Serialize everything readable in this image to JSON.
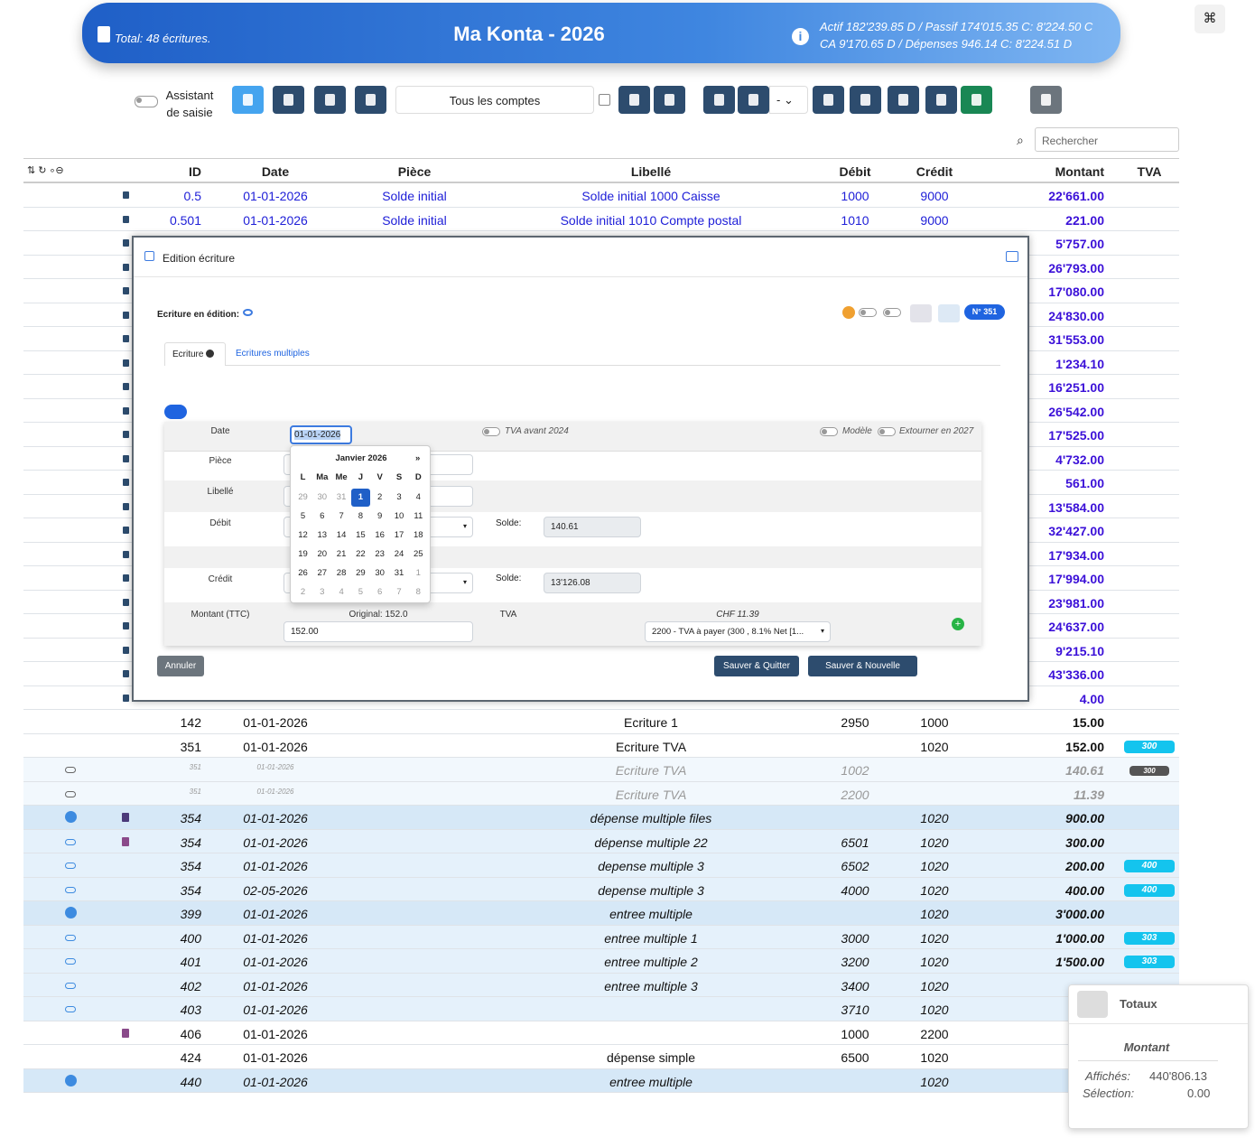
{
  "header": {
    "total": "Total: 48 écritures.",
    "title": "Ma Konta - 2026",
    "summary_line1": "Actif 182'239.85 D / Passif 174'015.35 C: 8'224.50 C",
    "summary_line2": "CA 9'170.65 D / Dépenses 946.14 C: 8'224.51 D"
  },
  "toolbar": {
    "assistant_label": "Assistant de saisie",
    "account_select": "Tous les comptes",
    "bookmark_select": "-",
    "search_placeholder": "Rechercher"
  },
  "table": {
    "columns": [
      "ID",
      "Date",
      "Pièce",
      "Libellé",
      "Débit",
      "Crédit",
      "Montant",
      "TVA"
    ],
    "rows": [
      {
        "kind": "initial",
        "id": "0.5",
        "date": "01-01-2026",
        "piece": "Solde initial",
        "libelle": "Solde initial 1000 Caisse",
        "debit": "1000",
        "credit": "9000",
        "montant": "22'661.00"
      },
      {
        "kind": "initial",
        "id": "0.501",
        "date": "01-01-2026",
        "piece": "Solde initial",
        "libelle": "Solde initial 1010 Compte postal",
        "debit": "1010",
        "credit": "9000",
        "montant": "221.00"
      },
      {
        "kind": "locked",
        "montant": "5'757.00"
      },
      {
        "kind": "locked",
        "montant": "26'793.00"
      },
      {
        "kind": "locked",
        "montant": "17'080.00"
      },
      {
        "kind": "locked",
        "montant": "24'830.00"
      },
      {
        "kind": "locked",
        "montant": "31'553.00"
      },
      {
        "kind": "locked",
        "montant": "1'234.10"
      },
      {
        "kind": "locked",
        "montant": "16'251.00"
      },
      {
        "kind": "locked",
        "montant": "26'542.00"
      },
      {
        "kind": "locked",
        "montant": "17'525.00"
      },
      {
        "kind": "locked",
        "montant": "4'732.00"
      },
      {
        "kind": "locked",
        "montant": "561.00"
      },
      {
        "kind": "locked",
        "montant": "13'584.00"
      },
      {
        "kind": "locked",
        "montant": "32'427.00"
      },
      {
        "kind": "locked",
        "montant": "17'934.00"
      },
      {
        "kind": "locked",
        "montant": "17'994.00"
      },
      {
        "kind": "locked",
        "montant": "23'981.00"
      },
      {
        "kind": "locked",
        "montant": "24'637.00"
      },
      {
        "kind": "locked",
        "montant": "9'215.10"
      },
      {
        "kind": "locked",
        "montant": "43'336.00"
      },
      {
        "kind": "locked",
        "montant": "4.00"
      },
      {
        "kind": "plain",
        "id": "142",
        "date": "01-01-2026",
        "libelle": "Ecriture 1",
        "debit": "2950",
        "credit": "1000",
        "montant": "15.00"
      },
      {
        "kind": "plain",
        "id": "351",
        "date": "01-01-2026",
        "libelle": "Ecriture TVA",
        "credit": "1020",
        "montant": "152.00",
        "tva": "300"
      },
      {
        "kind": "sub",
        "id": "351",
        "date": "01-01-2026",
        "libelle": "Ecriture TVA",
        "debit": "1002",
        "montant": "140.61",
        "tva": "300"
      },
      {
        "kind": "sub",
        "id": "351",
        "date": "01-01-2026",
        "libelle": "Ecriture TVA",
        "debit": "2200",
        "montant": "11.39"
      },
      {
        "kind": "parent",
        "attachment": "archive",
        "id": "354",
        "date": "01-01-2026",
        "libelle": "dépense multiple files",
        "credit": "1020",
        "montant": "900.00"
      },
      {
        "kind": "child",
        "attachment": "file",
        "id": "354",
        "date": "01-01-2026",
        "libelle": "dépense multiple 22",
        "debit": "6501",
        "credit": "1020",
        "montant": "300.00"
      },
      {
        "kind": "child",
        "id": "354",
        "date": "01-01-2026",
        "libelle": "depense multiple 3",
        "debit": "6502",
        "credit": "1020",
        "montant": "200.00",
        "tva": "400"
      },
      {
        "kind": "child",
        "id": "354",
        "date": "02-05-2026",
        "libelle": "depense multiple 3",
        "debit": "4000",
        "credit": "1020",
        "montant": "400.00",
        "tva": "400"
      },
      {
        "kind": "parent",
        "id": "399",
        "date": "01-01-2026",
        "libelle": "entree multiple",
        "credit": "1020",
        "montant": "3'000.00"
      },
      {
        "kind": "child",
        "id": "400",
        "date": "01-01-2026",
        "libelle": "entree multiple 1",
        "debit": "3000",
        "credit": "1020",
        "montant": "1'000.00",
        "tva": "303"
      },
      {
        "kind": "child",
        "id": "401",
        "date": "01-01-2026",
        "libelle": "entree multiple 2",
        "debit": "3200",
        "credit": "1020",
        "montant": "1'500.00",
        "tva": "303"
      },
      {
        "kind": "child",
        "id": "402",
        "date": "01-01-2026",
        "libelle": "entree multiple 3",
        "debit": "3400",
        "credit": "1020"
      },
      {
        "kind": "child",
        "id": "403",
        "date": "01-01-2026",
        "debit": "3710",
        "credit": "1020"
      },
      {
        "kind": "plain",
        "attachment": "file",
        "id": "406",
        "date": "01-01-2026",
        "debit": "1000",
        "credit": "2200"
      },
      {
        "kind": "plain",
        "id": "424",
        "date": "01-01-2026",
        "libelle": "dépense simple",
        "debit": "6500",
        "credit": "1020"
      },
      {
        "kind": "parent",
        "id": "440",
        "date": "01-01-2026",
        "libelle": "entree multiple",
        "credit": "1020"
      }
    ]
  },
  "modal": {
    "title": "Edition écriture",
    "editing_label": "Ecriture en édition:",
    "number_badge": "N° 351",
    "tab_single": "Ecriture",
    "tab_multiple": "Ecritures multiples",
    "label_date": "Date",
    "label_piece": "Pièce",
    "label_libelle": "Libellé",
    "label_debit": "Débit",
    "label_credit": "Crédit",
    "label_amount": "Montant (TTC)",
    "original": "Original: 152.0",
    "label_tva": "TVA",
    "tva_amount": "CHF 11.39",
    "tva_select": "2200 - TVA à payer (300 , 8.1% Net [1...",
    "date_value": "01-01-2026",
    "amount_value": "152.00",
    "solde_label_debit": "Solde:",
    "solde_debit": "140.61",
    "solde_label_credit": "Solde:",
    "solde_credit": "13'126.08",
    "toggle_tva": "TVA avant 2024",
    "toggle_model": "Modèle",
    "toggle_reverse": "Extourner en 2027",
    "cancel": "Annuler",
    "save_quit": "Sauver & Quitter",
    "save_new": "Sauver & Nouvelle"
  },
  "datepicker": {
    "month": "Janvier 2026",
    "next": "»",
    "weekdays": [
      "L",
      "Ma",
      "Me",
      "J",
      "V",
      "S",
      "D"
    ],
    "selected": [
      0,
      3
    ],
    "weeks": [
      [
        "29",
        "30",
        "31",
        "1",
        "2",
        "3",
        "4"
      ],
      [
        "5",
        "6",
        "7",
        "8",
        "9",
        "10",
        "11"
      ],
      [
        "12",
        "13",
        "14",
        "15",
        "16",
        "17",
        "18"
      ],
      [
        "19",
        "20",
        "21",
        "22",
        "23",
        "24",
        "25"
      ],
      [
        "26",
        "27",
        "28",
        "29",
        "30",
        "31",
        "1"
      ],
      [
        "2",
        "3",
        "4",
        "5",
        "6",
        "7",
        "8"
      ]
    ]
  },
  "totals": {
    "title": "Totaux",
    "column": "Montant",
    "shown_label": "Affichés:",
    "shown_value": "440'806.13",
    "selection_label": "Sélection:",
    "selection_value": "0.00"
  }
}
